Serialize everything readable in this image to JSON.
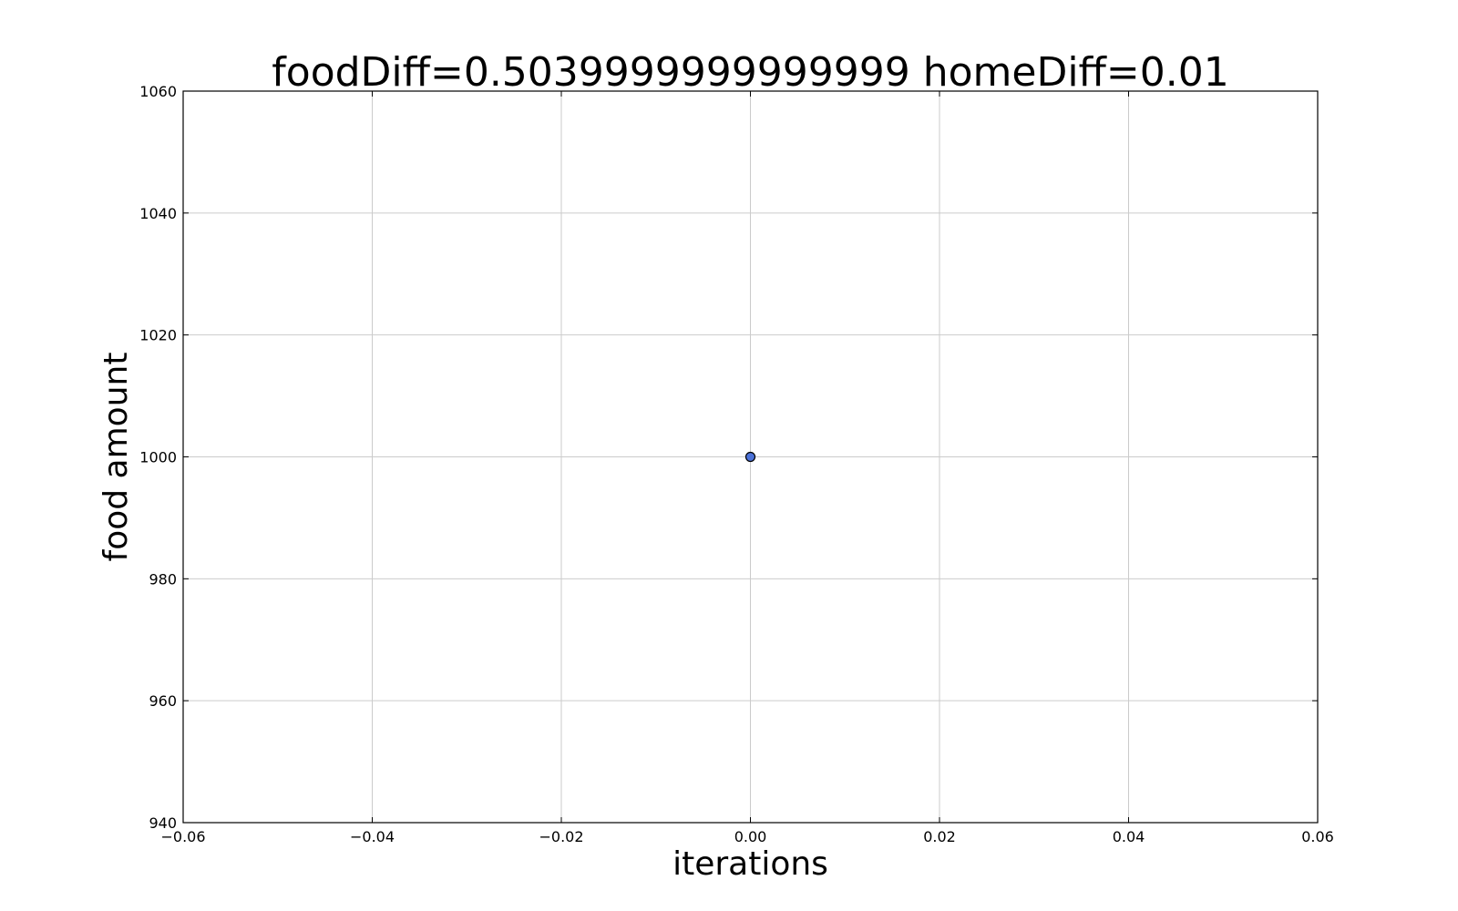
{
  "chart_data": {
    "type": "scatter",
    "title": "foodDiff=0.5039999999999999 homeDiff=0.01",
    "xlabel": "iterations",
    "ylabel": "food amount",
    "xlim": [
      -0.06,
      0.06
    ],
    "ylim": [
      940,
      1060
    ],
    "xticks": [
      -0.06,
      -0.04,
      -0.02,
      0.0,
      0.02,
      0.04,
      0.06
    ],
    "yticks": [
      940,
      960,
      980,
      1000,
      1020,
      1040,
      1060
    ],
    "xtick_labels": [
      "−0.06",
      "−0.04",
      "−0.02",
      "0.00",
      "0.02",
      "0.04",
      "0.06"
    ],
    "ytick_labels": [
      "940",
      "960",
      "980",
      "1000",
      "1020",
      "1040",
      "1060"
    ],
    "grid": true,
    "points": [
      {
        "x": 0.0,
        "y": 1000
      }
    ],
    "marker_color": "#4c72d8"
  }
}
